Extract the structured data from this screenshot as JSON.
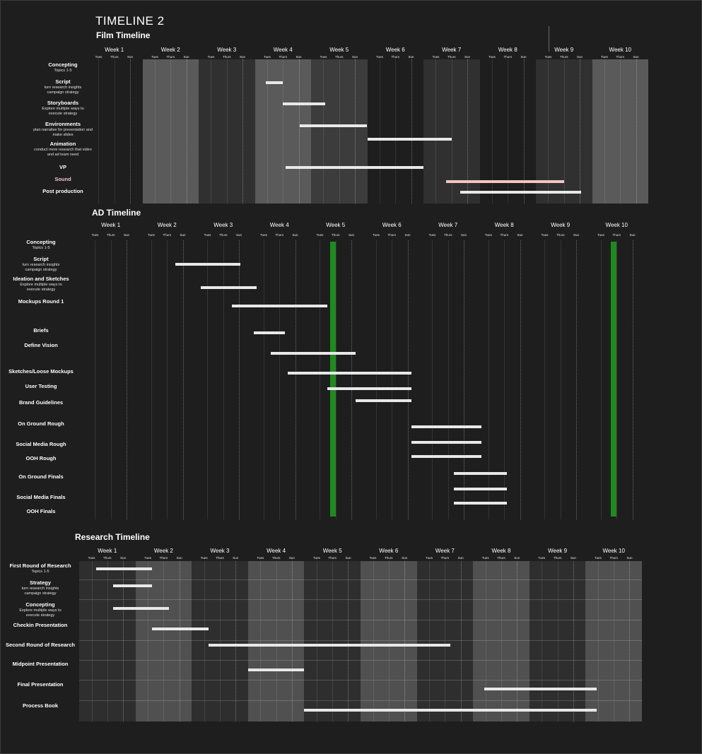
{
  "title": "TIMELINE 2",
  "colors": {
    "background": "#1e1e1e",
    "bar": "#e8e8e8",
    "sound_bar": "#f4c4c4",
    "milestone": "#1f8a1f"
  },
  "day_labels": [
    "Tues",
    "Thurs",
    "Sun"
  ],
  "chart_data": [
    {
      "type": "gantt",
      "title": "Film Timeline",
      "weeks": [
        "Week 1",
        "Week 2",
        "Week 3",
        "Week 4",
        "Week 5",
        "Week 6",
        "Week 7",
        "Week 8",
        "Week 9",
        "Week 10"
      ],
      "x_unit": "week",
      "xlim": [
        0,
        10
      ],
      "shaded_weeks": [
        {
          "week": "Week 2",
          "tone": "#5a5a5a"
        },
        {
          "week": "Week 3",
          "tone": "#303030"
        },
        {
          "week": "Week 4",
          "tone": "#5a5a5a"
        },
        {
          "week": "Week 5",
          "tone": "#3c3c3c"
        },
        {
          "week": "Week 7",
          "tone": "#303030"
        },
        {
          "week": "Week 9",
          "tone": "#303030"
        },
        {
          "week": "Week 10",
          "tone": "#5a5a5a"
        }
      ],
      "tasks": [
        {
          "name": "Concepting",
          "detail": "Topics 1-5"
        },
        {
          "name": "Script",
          "detail": "turn research insights\ncampaign strategy",
          "start": 3.2,
          "end": 3.5
        },
        {
          "name": "Storyboards",
          "detail": "Explore multiple ways to\nexecute strategy",
          "start": 3.5,
          "end": 4.25
        },
        {
          "name": "Environments",
          "detail": "plan narrative for presentation and\nmake slides",
          "start": 3.8,
          "end": 5.0
        },
        {
          "name": "Animation",
          "detail": "conduct more research that video\nand ad team need",
          "start": 5.0,
          "end": 6.5
        },
        {
          "name": "VP",
          "start": 3.55,
          "end": 6.0
        },
        {
          "name": "Sound",
          "start": 6.4,
          "end": 8.5,
          "color": "#f4c4c4"
        },
        {
          "name": "Post production",
          "start": 6.65,
          "end": 8.8
        }
      ]
    },
    {
      "type": "gantt",
      "title": "AD Timeline",
      "weeks": [
        "Week 1",
        "Week 2",
        "Week 3",
        "Week 4",
        "Week 5",
        "Week 6",
        "Week 7",
        "Week 8",
        "Week 9",
        "Week 10"
      ],
      "x_unit": "week",
      "xlim": [
        0,
        10
      ],
      "milestones": [
        4.45,
        9.45
      ],
      "tasks": [
        {
          "name": "Concepting",
          "detail": "Topics 1-5"
        },
        {
          "name": "Script",
          "detail": "turn research insights\ncampaign strategy",
          "start": 1.65,
          "end": 2.8
        },
        {
          "name": "Ideation and Sketches",
          "detail": "Explore multiple ways to\nexecute strategy",
          "start": 2.1,
          "end": 3.1
        },
        {
          "name": "Mockups Round 1",
          "start": 2.65,
          "end": 4.35
        },
        {
          "name": "Briefs",
          "start": 3.05,
          "end": 3.6
        },
        {
          "name": "Define Vision",
          "start": 3.35,
          "end": 4.85
        },
        {
          "name": "Sketches/Loose Mockups",
          "start": 3.65,
          "end": 5.85
        },
        {
          "name": "User Testing",
          "start": 4.35,
          "end": 5.85
        },
        {
          "name": "Brand Guidelines",
          "start": 4.85,
          "end": 5.85
        },
        {
          "name": "On Ground Rough",
          "start": 5.85,
          "end": 7.1
        },
        {
          "name": "Social Media Rough",
          "start": 5.85,
          "end": 7.1
        },
        {
          "name": "OOH Rough",
          "start": 5.85,
          "end": 7.1
        },
        {
          "name": "On Ground Finals",
          "start": 6.6,
          "end": 7.55
        },
        {
          "name": "Social Media Finals",
          "start": 6.6,
          "end": 7.55
        },
        {
          "name": "OOH Finals",
          "start": 6.6,
          "end": 7.55
        }
      ]
    },
    {
      "type": "gantt",
      "title": "Research Timeline",
      "weeks": [
        "Week 1",
        "Week 2",
        "Week 3",
        "Week 4",
        "Week 5",
        "Week 6",
        "Week 7",
        "Week 8",
        "Week 9",
        "Week 10"
      ],
      "x_unit": "week",
      "xlim": [
        0,
        10
      ],
      "shaded_weeks": [
        {
          "week": "Week 1",
          "tone": "#2e2e2e"
        },
        {
          "week": "Week 2",
          "tone": "#505050"
        },
        {
          "week": "Week 3",
          "tone": "#2e2e2e"
        },
        {
          "week": "Week 4",
          "tone": "#505050"
        },
        {
          "week": "Week 5",
          "tone": "#2e2e2e"
        },
        {
          "week": "Week 6",
          "tone": "#505050"
        },
        {
          "week": "Week 7",
          "tone": "#2e2e2e"
        },
        {
          "week": "Week 8",
          "tone": "#505050"
        },
        {
          "week": "Week 9",
          "tone": "#2e2e2e"
        },
        {
          "week": "Week 10",
          "tone": "#505050"
        }
      ],
      "tasks": [
        {
          "name": "First Round of Research",
          "detail": "Topics 1-5",
          "start": 0.3,
          "end": 1.3
        },
        {
          "name": "Strategy",
          "detail": "turn research insights\ncampaign strategy",
          "start": 0.6,
          "end": 1.3
        },
        {
          "name": "Concepting",
          "detail": "Explore multiple ways to\nexecute strategy",
          "start": 0.6,
          "end": 1.6
        },
        {
          "name": "Checkin Presentation",
          "start": 1.3,
          "end": 2.3
        },
        {
          "name": "Second Round of Research",
          "start": 2.3,
          "end": 6.6
        },
        {
          "name": "Midpoint Presentation",
          "start": 3.0,
          "end": 4.0
        },
        {
          "name": "Final Presentation",
          "start": 7.2,
          "end": 9.2
        },
        {
          "name": "Process Book",
          "start": 4.0,
          "end": 9.2
        }
      ]
    }
  ]
}
